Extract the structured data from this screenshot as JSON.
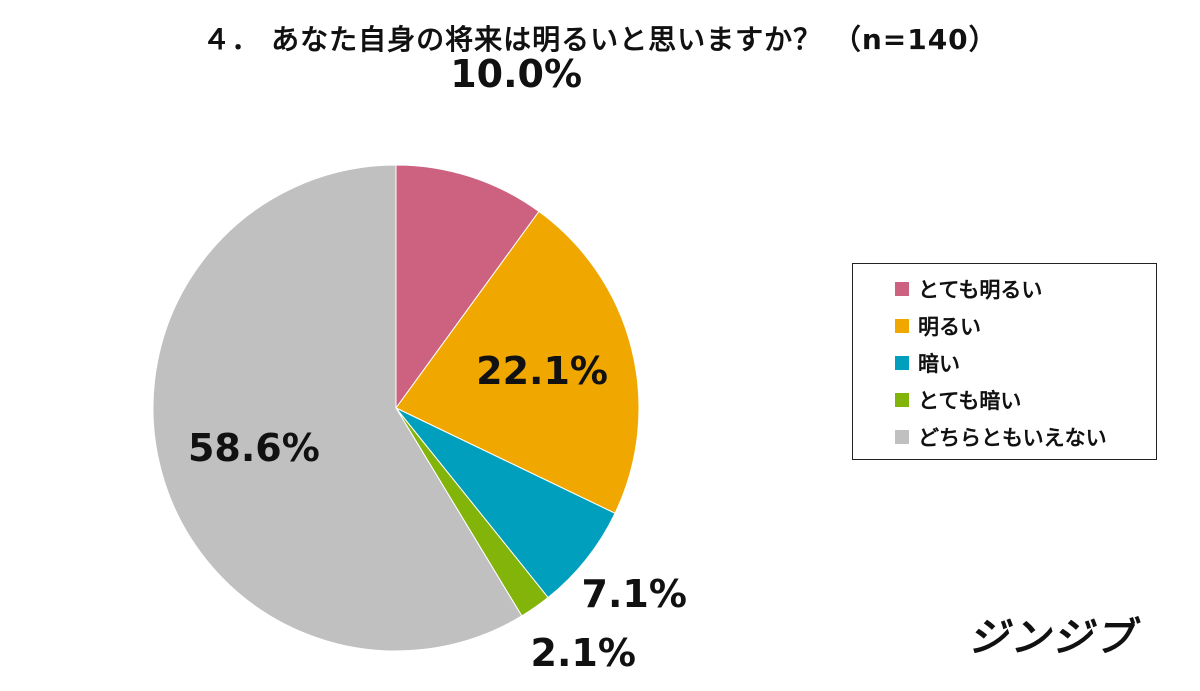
{
  "chart_data": {
    "type": "pie",
    "title": "４． あなた自身の将来は明るいと思いますか？ （n=140）",
    "categories": [
      "とても明るい",
      "明るい",
      "暗い",
      "とても暗い",
      "どちらともいえない"
    ],
    "values": [
      10.0,
      22.1,
      7.1,
      2.1,
      58.6
    ],
    "value_labels": [
      "10.0%",
      "22.1%",
      "7.1%",
      "2.1%",
      "58.6%"
    ],
    "colors": [
      "#cc6180",
      "#f0a800",
      "#009fbe",
      "#82b40a",
      "#c0c0c0"
    ],
    "legend_position": "right",
    "start_angle": "12 o'clock",
    "direction": "clockwise"
  },
  "brand": "ジンジブ"
}
